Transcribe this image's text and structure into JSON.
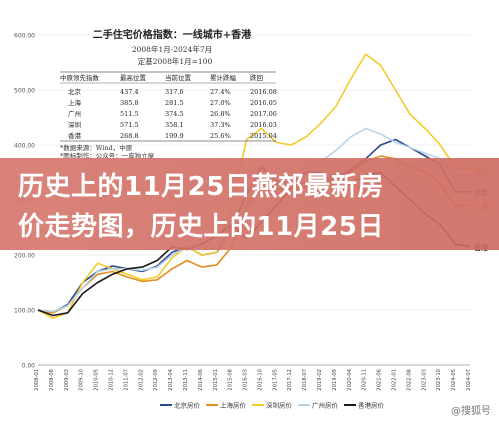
{
  "overlay": {
    "line1": "历史上的11月25日燕郊最新房",
    "line2": "价走势图，历史上的11月25日"
  },
  "watermark": "@搜狐号",
  "colors": {
    "beijing": "#2e4a8c",
    "shanghai": "#e09020",
    "shenzhen": "#f2cc2a",
    "guangzhou": "#b8d4e8",
    "hongkong": "#1a1a1a",
    "grid": "#e6e6e6",
    "overlay": "#d46e62"
  },
  "chart_data": {
    "type": "line",
    "title": "二手住宅价格指数：一线城市+香港",
    "subtitle_lines": [
      "2008年1月-2024年7月",
      "定基2008年1月=100"
    ],
    "ylim": [
      0,
      600
    ],
    "yticks": [
      "0.00",
      "100.00",
      "200.00",
      "300.00",
      "400.00",
      "500.00",
      "600.00"
    ],
    "x": [
      "2008-01",
      "2008-08",
      "2009-03",
      "2009-10",
      "2010-05",
      "2010-12",
      "2011-07",
      "2012-02",
      "2012-09",
      "2013-04",
      "2013-11",
      "2014-06",
      "2015-01",
      "2015-08",
      "2016-03",
      "2016-10",
      "2017-05",
      "2017-12",
      "2018-07",
      "2019-02",
      "2019-09",
      "2020-04",
      "2020-11",
      "2021-06",
      "2022-01",
      "2022-08",
      "2023-03",
      "2023-10",
      "2024-05",
      "2024-07"
    ],
    "series": [
      {
        "name": "北京房价",
        "key": "beijing",
        "end_label": "北京",
        "values": [
          100,
          96,
          110,
          150,
          170,
          180,
          175,
          170,
          180,
          205,
          215,
          200,
          205,
          250,
          310,
          360,
          335,
          330,
          330,
          335,
          340,
          355,
          375,
          400,
          410,
          395,
          380,
          365,
          315,
          315
        ]
      },
      {
        "name": "上海房价",
        "key": "shanghai",
        "end_label": "上海",
        "values": [
          100,
          95,
          108,
          140,
          165,
          170,
          160,
          152,
          155,
          175,
          190,
          178,
          182,
          215,
          290,
          330,
          320,
          320,
          325,
          330,
          335,
          350,
          370,
          380,
          375,
          360,
          350,
          330,
          290,
          290
        ]
      },
      {
        "name": "深圳房价",
        "key": "shenzhen",
        "end_label": "深圳",
        "values": [
          100,
          85,
          95,
          150,
          185,
          175,
          165,
          155,
          160,
          195,
          215,
          200,
          205,
          290,
          410,
          430,
          405,
          400,
          415,
          440,
          470,
          520,
          565,
          545,
          500,
          455,
          430,
          400,
          360,
          355
        ]
      },
      {
        "name": "广州房价",
        "key": "guangzhou",
        "end_label": "广州",
        "values": [
          100,
          97,
          108,
          140,
          170,
          175,
          175,
          172,
          178,
          200,
          215,
          210,
          212,
          240,
          280,
          320,
          330,
          345,
          350,
          370,
          390,
          415,
          430,
          420,
          405,
          395,
          385,
          375,
          345,
          345
        ]
      },
      {
        "name": "香港房价",
        "key": "hongkong",
        "end_label": "香港",
        "values": [
          100,
          90,
          95,
          130,
          150,
          165,
          175,
          178,
          190,
          215,
          210,
          220,
          235,
          255,
          230,
          260,
          290,
          320,
          350,
          350,
          320,
          330,
          345,
          350,
          325,
          300,
          275,
          255,
          220,
          215
        ]
      }
    ],
    "table": {
      "headers": [
        "中原领先指数",
        "最高位置",
        "当前位置",
        "累计跌幅",
        "跌回"
      ],
      "rows": [
        [
          "北京",
          "437.4",
          "317.6",
          "27.4%",
          "2016.08"
        ],
        [
          "上海",
          "385.8",
          "281.5",
          "27.0%",
          "2016.05"
        ],
        [
          "广州",
          "511.5",
          "374.5",
          "26.8%",
          "2017.06"
        ],
        [
          "深圳",
          "571.5",
          "358.1",
          "37.3%",
          "2016.03"
        ],
        [
          "香港",
          "268.8",
          "199.9",
          "25.6%",
          "2015.04"
        ]
      ],
      "notes": [
        "*数据来源：Wind，中原",
        "*图标制作：公众号：一座独立屋"
      ]
    }
  }
}
